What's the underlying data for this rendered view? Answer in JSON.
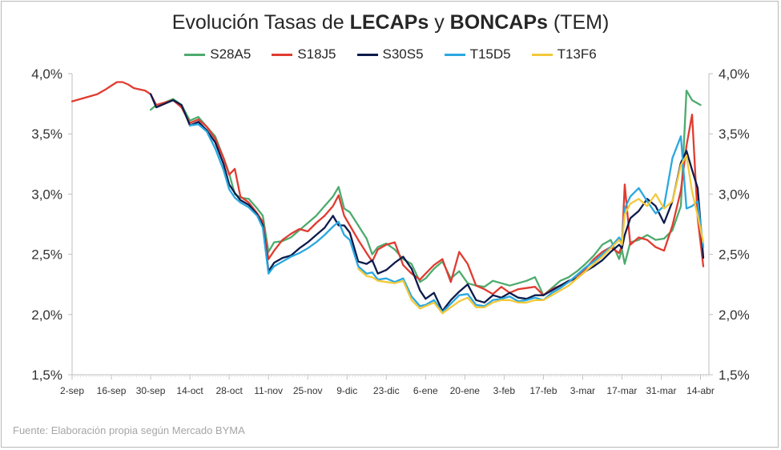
{
  "title": {
    "prefix": "Evolución Tasas de ",
    "bold1": "LECAPs",
    "mid": " y ",
    "bold2": "BONCAPs",
    "suffix": " (TEM)"
  },
  "source": "Fuente: Elaboración propia según Mercado BYMA",
  "chart_data": {
    "type": "line",
    "xlabel": "",
    "ylabel": "",
    "x_ticks": [
      "2-sep",
      "16-sep",
      "30-sep",
      "14-oct",
      "28-oct",
      "11-nov",
      "25-nov",
      "9-dic",
      "23-dic",
      "6-ene",
      "20-ene",
      "3-feb",
      "17-feb",
      "3-mar",
      "17-mar",
      "31-mar",
      "14-abr"
    ],
    "x_tick_days": [
      0,
      14,
      28,
      42,
      56,
      70,
      84,
      98,
      112,
      126,
      140,
      154,
      168,
      182,
      196,
      210,
      224
    ],
    "x_range_days": [
      0,
      227
    ],
    "y_ticks": [
      "1,5%",
      "2,0%",
      "2,5%",
      "3,0%",
      "3,5%",
      "4,0%"
    ],
    "ylim": [
      1.5,
      4.0
    ],
    "grid": false,
    "legend_position": "top",
    "series": [
      {
        "name": "S28A5",
        "color": "#4dab6d",
        "x": [
          28,
          30,
          33,
          36,
          39,
          42,
          45,
          48,
          51,
          54,
          56,
          58,
          60,
          63,
          66,
          68,
          70,
          72,
          75,
          78,
          81,
          84,
          87,
          90,
          93,
          95,
          97,
          99,
          102,
          105,
          107,
          109,
          112,
          115,
          118,
          121,
          124,
          126,
          129,
          132,
          135,
          138,
          141,
          144,
          147,
          150,
          153,
          156,
          159,
          162,
          165,
          168,
          171,
          174,
          177,
          180,
          183,
          186,
          189,
          192,
          195,
          196,
          197,
          199,
          202,
          205,
          208,
          211,
          214,
          217,
          219,
          221,
          224
        ],
        "y": [
          3.7,
          3.74,
          3.76,
          3.79,
          3.74,
          3.61,
          3.64,
          3.56,
          3.48,
          3.3,
          3.17,
          3.0,
          2.97,
          2.96,
          2.88,
          2.82,
          2.52,
          2.6,
          2.61,
          2.64,
          2.7,
          2.76,
          2.82,
          2.9,
          2.98,
          3.06,
          2.88,
          2.85,
          2.74,
          2.63,
          2.5,
          2.56,
          2.59,
          2.54,
          2.46,
          2.42,
          2.27,
          2.3,
          2.38,
          2.44,
          2.3,
          2.36,
          2.26,
          2.24,
          2.23,
          2.28,
          2.26,
          2.24,
          2.26,
          2.28,
          2.31,
          2.16,
          2.22,
          2.28,
          2.31,
          2.36,
          2.42,
          2.49,
          2.58,
          2.62,
          2.46,
          2.54,
          2.42,
          2.6,
          2.62,
          2.66,
          2.62,
          2.63,
          2.7,
          2.9,
          3.86,
          3.78,
          3.74
        ]
      },
      {
        "name": "S18J5",
        "color": "#e03c31",
        "x": [
          0,
          3,
          6,
          9,
          12,
          14,
          16,
          18,
          20,
          22,
          24,
          26,
          28,
          30,
          33,
          36,
          39,
          42,
          45,
          48,
          51,
          54,
          56,
          58,
          60,
          63,
          66,
          68,
          70,
          72,
          75,
          78,
          81,
          84,
          87,
          90,
          93,
          95,
          97,
          99,
          102,
          105,
          107,
          109,
          112,
          115,
          118,
          121,
          124,
          126,
          129,
          132,
          135,
          138,
          141,
          144,
          147,
          150,
          153,
          156,
          159,
          162,
          165,
          168,
          171,
          174,
          177,
          180,
          183,
          186,
          189,
          192,
          195,
          196,
          197,
          199,
          202,
          205,
          208,
          211,
          214,
          217,
          219,
          221,
          223,
          225
        ],
        "y": [
          3.77,
          3.79,
          3.81,
          3.83,
          3.87,
          3.9,
          3.93,
          3.93,
          3.91,
          3.88,
          3.87,
          3.86,
          3.83,
          3.74,
          3.76,
          3.78,
          3.72,
          3.59,
          3.62,
          3.56,
          3.46,
          3.3,
          3.16,
          3.21,
          2.98,
          2.93,
          2.84,
          2.77,
          2.46,
          2.53,
          2.62,
          2.67,
          2.71,
          2.69,
          2.76,
          2.82,
          2.9,
          2.99,
          2.82,
          2.74,
          2.62,
          2.51,
          2.44,
          2.54,
          2.58,
          2.6,
          2.41,
          2.34,
          2.29,
          2.34,
          2.41,
          2.46,
          2.27,
          2.52,
          2.42,
          2.24,
          2.21,
          2.17,
          2.23,
          2.18,
          2.21,
          2.22,
          2.23,
          2.16,
          2.21,
          2.24,
          2.27,
          2.31,
          2.38,
          2.46,
          2.52,
          2.56,
          2.51,
          2.57,
          3.08,
          2.58,
          2.64,
          2.62,
          2.56,
          2.53,
          2.74,
          3.03,
          3.4,
          3.66,
          2.8,
          2.4
        ]
      },
      {
        "name": "S30S5",
        "color": "#0d1b4c",
        "x": [
          28,
          30,
          33,
          36,
          39,
          42,
          45,
          48,
          51,
          54,
          56,
          58,
          60,
          63,
          66,
          68,
          70,
          72,
          75,
          78,
          81,
          84,
          87,
          90,
          93,
          95,
          97,
          99,
          102,
          105,
          107,
          109,
          112,
          115,
          118,
          121,
          124,
          126,
          129,
          132,
          135,
          138,
          141,
          144,
          147,
          150,
          153,
          156,
          159,
          162,
          165,
          168,
          171,
          174,
          177,
          180,
          183,
          186,
          189,
          192,
          195,
          196,
          197,
          199,
          202,
          205,
          208,
          211,
          214,
          217,
          219,
          221,
          223,
          225
        ],
        "y": [
          3.83,
          3.72,
          3.75,
          3.78,
          3.74,
          3.57,
          3.6,
          3.53,
          3.43,
          3.25,
          3.08,
          3.01,
          2.95,
          2.91,
          2.83,
          2.74,
          2.36,
          2.43,
          2.47,
          2.49,
          2.55,
          2.6,
          2.66,
          2.72,
          2.82,
          2.74,
          2.74,
          2.68,
          2.44,
          2.42,
          2.45,
          2.34,
          2.37,
          2.43,
          2.48,
          2.38,
          2.2,
          2.13,
          2.18,
          2.03,
          2.12,
          2.19,
          2.25,
          2.12,
          2.1,
          2.16,
          2.14,
          2.18,
          2.14,
          2.13,
          2.16,
          2.16,
          2.2,
          2.24,
          2.28,
          2.3,
          2.36,
          2.4,
          2.45,
          2.52,
          2.58,
          2.55,
          2.66,
          2.8,
          2.86,
          2.96,
          2.9,
          2.76,
          2.94,
          3.26,
          3.36,
          3.2,
          3.05,
          2.47
        ]
      },
      {
        "name": "T15D5",
        "color": "#2aa8e0",
        "x": [
          42,
          45,
          48,
          51,
          54,
          56,
          58,
          60,
          63,
          66,
          68,
          70,
          72,
          75,
          78,
          81,
          84,
          87,
          90,
          93,
          95,
          97,
          99,
          102,
          105,
          107,
          109,
          112,
          115,
          118,
          121,
          124,
          126,
          129,
          132,
          135,
          138,
          141,
          144,
          147,
          150,
          153,
          156,
          159,
          162,
          165,
          168,
          171,
          174,
          177,
          180,
          183,
          186,
          189,
          192,
          195,
          196,
          197,
          199,
          202,
          205,
          208,
          211,
          214,
          217,
          219,
          221,
          223,
          225
        ],
        "y": [
          3.57,
          3.58,
          3.52,
          3.38,
          3.2,
          3.04,
          2.97,
          2.93,
          2.89,
          2.82,
          2.72,
          2.34,
          2.4,
          2.44,
          2.48,
          2.51,
          2.55,
          2.6,
          2.66,
          2.73,
          2.77,
          2.66,
          2.62,
          2.4,
          2.34,
          2.35,
          2.29,
          2.3,
          2.27,
          2.3,
          2.15,
          2.07,
          2.08,
          2.12,
          2.02,
          2.09,
          2.16,
          2.17,
          2.08,
          2.07,
          2.12,
          2.13,
          2.15,
          2.11,
          2.12,
          2.14,
          2.12,
          2.18,
          2.22,
          2.27,
          2.33,
          2.39,
          2.44,
          2.5,
          2.56,
          2.64,
          2.6,
          2.88,
          2.98,
          3.05,
          2.94,
          2.84,
          2.9,
          3.3,
          3.48,
          2.88,
          2.9,
          2.94,
          2.56
        ]
      },
      {
        "name": "T13F6",
        "color": "#f3c93b",
        "x": [
          102,
          105,
          107,
          109,
          112,
          115,
          118,
          121,
          124,
          126,
          129,
          132,
          135,
          138,
          141,
          144,
          147,
          150,
          153,
          156,
          159,
          162,
          165,
          168,
          171,
          174,
          177,
          180,
          183,
          186,
          189,
          192,
          195,
          196,
          197,
          199,
          202,
          205,
          208,
          211,
          214,
          217,
          219,
          221,
          223,
          225
        ],
        "y": [
          2.38,
          2.32,
          2.31,
          2.28,
          2.27,
          2.26,
          2.28,
          2.12,
          2.05,
          2.07,
          2.1,
          2.01,
          2.06,
          2.11,
          2.14,
          2.06,
          2.06,
          2.1,
          2.12,
          2.12,
          2.1,
          2.1,
          2.12,
          2.12,
          2.16,
          2.2,
          2.24,
          2.3,
          2.36,
          2.42,
          2.48,
          2.55,
          2.62,
          2.58,
          2.83,
          2.92,
          2.96,
          2.9,
          3.0,
          2.88,
          2.94,
          3.24,
          3.32,
          3.02,
          2.82,
          2.6
        ]
      }
    ]
  }
}
